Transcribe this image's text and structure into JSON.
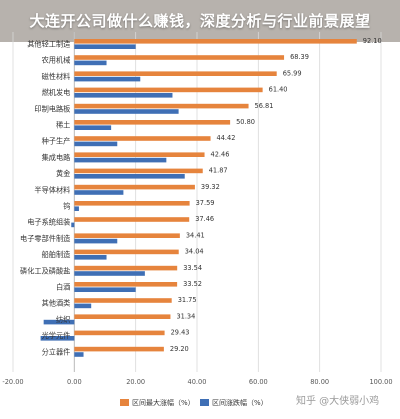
{
  "header": {
    "title": "大连开公司做什么赚钱，深度分析与行业前景展望"
  },
  "watermark": "知乎 @大侠弱小鸡",
  "colors": {
    "max_series": "#e6843d",
    "min_series": "#3f6fb5",
    "header_bg": "#b7b2ad",
    "grid": "#d9d9d9"
  },
  "chart_data": {
    "type": "bar",
    "orientation": "horizontal",
    "title": "",
    "categories": [
      "其他轻工制造",
      "农用机械",
      "磁性材料",
      "燃机发电",
      "印制电路板",
      "稀土",
      "种子生产",
      "集成电路",
      "黄金",
      "半导体材料",
      "钨",
      "电子系统组装",
      "电子零部件制造",
      "船舶制造",
      "磷化工及磷酸盐",
      "白酒",
      "其他酒类",
      "纺织",
      "光学元件",
      "分立器件"
    ],
    "series": [
      {
        "name": "区间最大涨幅（%）",
        "values": [
          92.1,
          68.39,
          65.99,
          61.4,
          56.81,
          50.8,
          44.42,
          42.46,
          41.87,
          39.32,
          37.59,
          37.46,
          34.41,
          34.04,
          33.54,
          33.52,
          31.75,
          31.34,
          29.43,
          29.2
        ],
        "value_labels": [
          "92.10",
          "68.39",
          "65.99",
          "61.40",
          "56.81",
          "50.80",
          "44.42",
          "42.46",
          "41.87",
          "39.32",
          "37.59",
          "37.46",
          "34.41",
          "34.04",
          "33.54",
          "33.52",
          "31.75",
          "31.34",
          "29.43",
          "29.20"
        ]
      },
      {
        "name": "区间涨跌幅（%）",
        "values": [
          20,
          10.5,
          21.5,
          32,
          34,
          12,
          14,
          30,
          36,
          16,
          1.5,
          -1,
          14,
          10.5,
          23,
          20,
          5.5,
          -10,
          -11,
          3
        ]
      }
    ],
    "xlim": [
      -20,
      100
    ],
    "xticks": [
      "-20.00",
      "0.00",
      "20.00",
      "40.00",
      "60.00",
      "80.00",
      "100.00"
    ],
    "grid": true,
    "legend_position": "bottom"
  }
}
